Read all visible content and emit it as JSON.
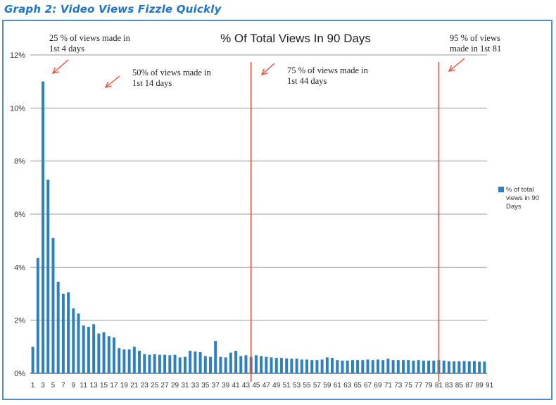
{
  "heading": "Graph 2: Video Views Fizzle Quickly",
  "chart_data": {
    "type": "bar",
    "title": "% Of Total Views In 90 Days",
    "xlabel": "",
    "ylabel": "",
    "ylim": [
      0,
      12
    ],
    "y_ticks": [
      "0%",
      "2%",
      "4%",
      "6%",
      "8%",
      "10%",
      "12%"
    ],
    "grid": true,
    "legend_position": "right",
    "bar_color": "#2e7fc1",
    "series": [
      {
        "name": "% of total views in 90 Days",
        "values": [
          1.0,
          4.35,
          11.0,
          7.3,
          5.1,
          3.45,
          3.0,
          3.05,
          2.45,
          2.25,
          1.8,
          1.75,
          1.85,
          1.5,
          1.55,
          1.4,
          1.35,
          0.95,
          0.9,
          0.9,
          1.0,
          0.85,
          0.72,
          0.7,
          0.72,
          0.7,
          0.7,
          0.68,
          0.7,
          0.6,
          0.62,
          0.85,
          0.82,
          0.8,
          0.65,
          0.62,
          1.22,
          0.62,
          0.6,
          0.78,
          0.85,
          0.65,
          0.68,
          0.62,
          0.68,
          0.65,
          0.62,
          0.6,
          0.58,
          0.58,
          0.56,
          0.55,
          0.55,
          0.52,
          0.52,
          0.5,
          0.5,
          0.52,
          0.6,
          0.58,
          0.5,
          0.48,
          0.48,
          0.5,
          0.5,
          0.5,
          0.52,
          0.5,
          0.52,
          0.5,
          0.55,
          0.5,
          0.5,
          0.5,
          0.5,
          0.48,
          0.5,
          0.48,
          0.48,
          0.48,
          0.5,
          0.48,
          0.45,
          0.45,
          0.45,
          0.46,
          0.45,
          0.46,
          0.44,
          0.44
        ]
      }
    ],
    "x_tick_labels": [
      "1",
      "3",
      "5",
      "7",
      "9",
      "11",
      "13",
      "15",
      "17",
      "19",
      "21",
      "23",
      "25",
      "27",
      "29",
      "31",
      "33",
      "35",
      "37",
      "39",
      "41",
      "43",
      "45",
      "47",
      "49",
      "51",
      "53",
      "55",
      "57",
      "59",
      "61",
      "63",
      "65",
      "67",
      "69",
      "71",
      "73",
      "75",
      "77",
      "79",
      "81",
      "83",
      "85",
      "87",
      "89",
      "91"
    ],
    "vertical_markers": [
      {
        "x": 44,
        "color": "#e8503a"
      },
      {
        "x": 81,
        "color": "#e8503a"
      }
    ],
    "annotations": [
      {
        "text_lines": [
          "25 % of views made in",
          "1st 4 days"
        ],
        "arrow_color": "#e8503a"
      },
      {
        "text_lines": [
          "50% of views made in",
          "1st 14 days"
        ],
        "arrow_color": "#e8503a"
      },
      {
        "text_lines": [
          "75 % of views made in",
          "1st 44 days"
        ],
        "arrow_color": "#e8503a"
      },
      {
        "text_lines": [
          "95 % of views",
          "made in 1st 81"
        ],
        "arrow_color": "#e8503a"
      }
    ]
  }
}
